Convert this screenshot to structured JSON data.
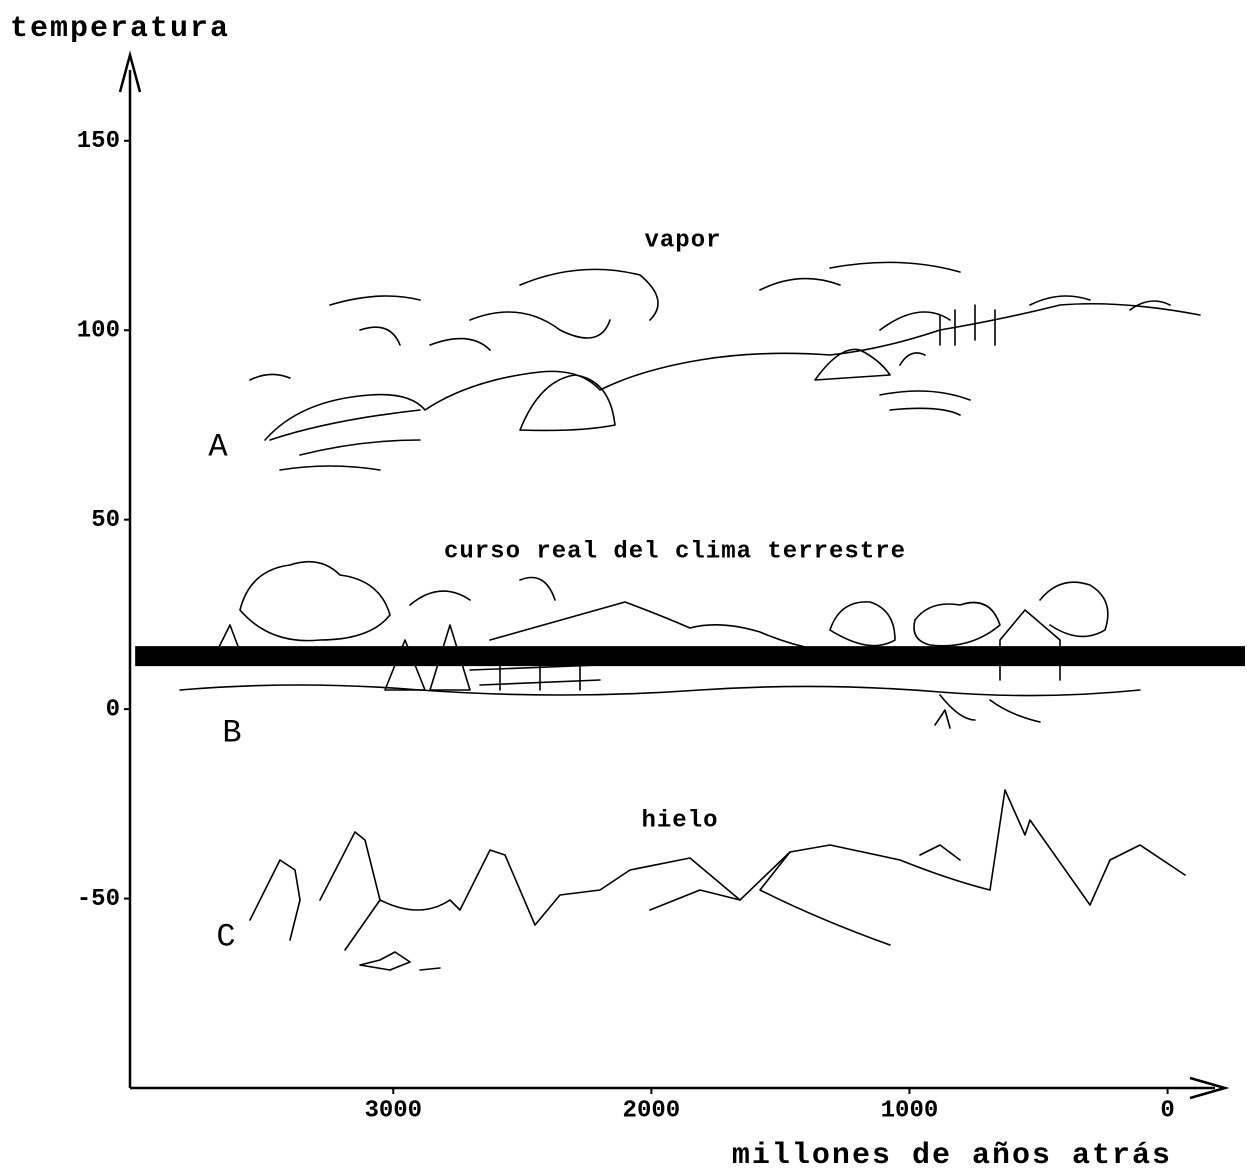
{
  "chart_data": {
    "type": "line",
    "y_label": "temperatura",
    "x_label": "millones de años atrás",
    "xlim": [
      4020,
      -300
    ],
    "ylim": [
      -100,
      170
    ],
    "xticks": [
      3000,
      2000,
      1000,
      0
    ],
    "yticks": [
      150,
      100,
      50,
      0,
      -50
    ],
    "series": [
      {
        "color": "#000000",
        "x": [
          4000,
          -300
        ],
        "values": [
          14,
          14
        ]
      }
    ],
    "annotations": [
      "vapor",
      "curso real del clima terrestre",
      "hielo",
      "A",
      "B",
      "C"
    ]
  }
}
